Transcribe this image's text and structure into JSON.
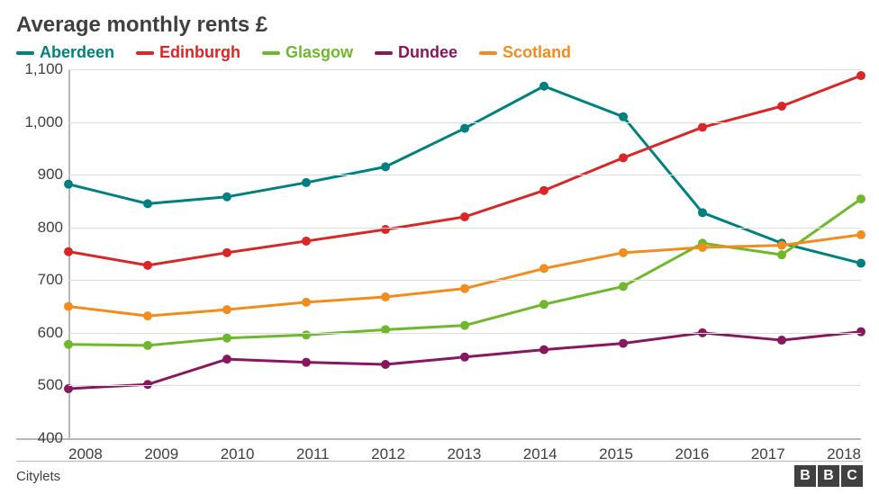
{
  "chart": {
    "type": "line",
    "title": "Average monthly rents £",
    "title_fontsize": 24,
    "background_color": "#ffffff",
    "grid_color": "#dcdcdc",
    "axis_color": "#b7b7b7",
    "label_fontsize": 17,
    "legend_fontsize": 18,
    "x_categories": [
      "2008",
      "2009",
      "2010",
      "2011",
      "2012",
      "2013",
      "2014",
      "2015",
      "2016",
      "2017",
      "2018"
    ],
    "ylim": [
      400,
      1100
    ],
    "ytick_step": 100,
    "ytick_labels": [
      "400",
      "500",
      "600",
      "700",
      "800",
      "900",
      "1,000",
      "1,100"
    ],
    "line_width": 3,
    "marker_radius": 5,
    "series": [
      {
        "name": "Aberdeen",
        "color": "#008080",
        "values": [
          882,
          845,
          858,
          885,
          915,
          988,
          1068,
          1010,
          828,
          770,
          732
        ]
      },
      {
        "name": "Edinburgh",
        "color": "#d92626",
        "values": [
          754,
          728,
          752,
          774,
          796,
          820,
          870,
          932,
          990,
          1030,
          1088
        ]
      },
      {
        "name": "Glasgow",
        "color": "#70b82b",
        "values": [
          578,
          576,
          590,
          596,
          606,
          614,
          654,
          688,
          770,
          748,
          854
        ]
      },
      {
        "name": "Dundee",
        "color": "#87175e",
        "values": [
          494,
          502,
          550,
          544,
          540,
          554,
          568,
          580,
          600,
          586,
          602
        ]
      },
      {
        "name": "Scotland",
        "color": "#f28c1c",
        "values": [
          650,
          632,
          644,
          658,
          668,
          684,
          722,
          752,
          762,
          766,
          786
        ]
      }
    ],
    "source_label": "Citylets",
    "attribution": {
      "b1": "B",
      "b2": "B",
      "b3": "C"
    }
  }
}
